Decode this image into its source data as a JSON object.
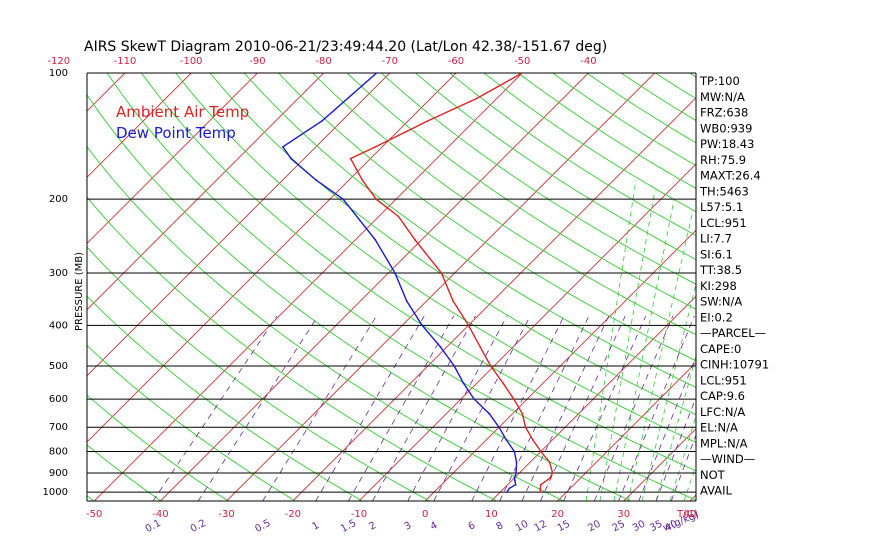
{
  "chart_data": {
    "type": "line",
    "title": "AIRS SkewT Diagram 2010-06-21/23:49:44.20 (Lat/Lon 42.38/-151.67 deg)",
    "ylabel": "PRESSURE (MB)",
    "xlabel_bottom_temp": "T(C)",
    "xlabel_bottom_mix": "w(g/kg)",
    "pressure_ticks": [
      1000,
      900,
      800,
      700,
      600,
      500,
      400,
      300,
      200,
      100
    ],
    "pressure_tick_labels": [
      "1000",
      "900",
      "800",
      "700",
      "600",
      "500",
      "400",
      "300",
      "200",
      "100"
    ],
    "pressure_range_mb": [
      1050,
      100
    ],
    "top_temp_ticks": [
      "-120",
      "-110",
      "-100",
      "-90",
      "-80",
      "-70",
      "-60",
      "-50",
      "-40"
    ],
    "bottom_temp_ticks": [
      "-50",
      "-40",
      "-30",
      "-20",
      "-10",
      "0",
      "10",
      "20",
      "30",
      "40"
    ],
    "mixing_ratio_ticks": [
      "0.1",
      "0.2",
      "0.5",
      "1",
      "1.5",
      "2",
      "3",
      "4",
      "6",
      "8",
      "10",
      "12",
      "15",
      "20",
      "25",
      "30",
      "35",
      "40"
    ],
    "legend": [
      {
        "name": "Ambient Air Temp",
        "color": "#dd2222"
      },
      {
        "name": "Dew Point Temp",
        "color": "#1a1ad0"
      }
    ],
    "series": [
      {
        "name": "Ambient Air Temp",
        "color": "#dd2222",
        "pressure": [
          1000,
          980,
          960,
          925,
          900,
          850,
          800,
          750,
          700,
          650,
          600,
          550,
          500,
          450,
          400,
          350,
          300,
          250,
          220,
          200,
          180,
          160,
          150,
          130,
          115,
          100
        ],
        "temp": [
          16,
          15.5,
          15,
          15.4,
          15,
          13,
          10,
          7,
          4,
          1.5,
          -2,
          -6,
          -10.5,
          -15,
          -20,
          -26,
          -32,
          -41,
          -47,
          -53,
          -58,
          -63,
          -61,
          -57,
          -53,
          -50
        ]
      },
      {
        "name": "Dew Point Temp",
        "color": "#1a1ad0",
        "pressure": [
          1000,
          980,
          960,
          940,
          925,
          900,
          850,
          800,
          750,
          700,
          650,
          600,
          550,
          500,
          450,
          400,
          350,
          300,
          250,
          200,
          180,
          160,
          150,
          130,
          100
        ],
        "temp": [
          11,
          10.8,
          11.2,
          10.5,
          10,
          9.5,
          8,
          6,
          3,
          0,
          -3.5,
          -8,
          -12,
          -16,
          -21,
          -27,
          -33,
          -39,
          -47,
          -58,
          -65,
          -72,
          -75,
          -73,
          -72
        ]
      }
    ],
    "indices": [
      "TP:100",
      "MW:N/A",
      "FRZ:638",
      "WB0:939",
      "PW:18.43",
      "RH:75.9",
      "MAXT:26.4",
      "TH:5463",
      "L57:5.1",
      "LCL:951",
      "LI:7.7",
      "SI:6.1",
      "TT:38.5",
      "KI:298",
      "SW:N/A",
      "EI:0.2",
      "—PARCEL—",
      "CAPE:0",
      "CINH:10791",
      "LCL:951",
      "CAP:9.6",
      "LFC:N/A",
      "EL:N/A",
      "MPL:N/A",
      "—WIND—",
      "NOT",
      "AVAIL"
    ],
    "grid": true
  }
}
